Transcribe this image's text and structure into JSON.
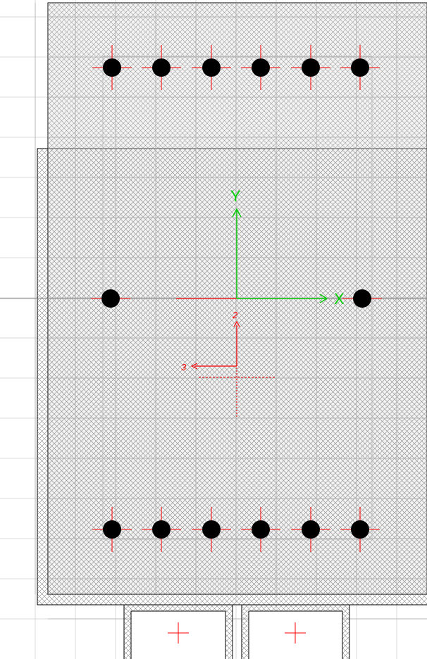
{
  "drawing": {
    "background_color": "#ffffff",
    "grid_color": "#d8d8d8",
    "hatch_color": "#8a8a8a",
    "outline_color": "#000000",
    "rebar_color": "#000000",
    "crosshair_color": "#ff0000",
    "global_axis_color": "#00cc00",
    "local_axis_color": "#ff0000"
  },
  "global_axes": {
    "x_label": "X",
    "y_label": "Y"
  },
  "local_axes": {
    "axis_2_label": "2",
    "axis_3_label": "3"
  },
  "rebar": {
    "top_row_count": 6,
    "bottom_row_count": 6,
    "middle_count": 2
  },
  "footings": {
    "count": 2,
    "marker_icon": "plus-crosshair-icon"
  }
}
